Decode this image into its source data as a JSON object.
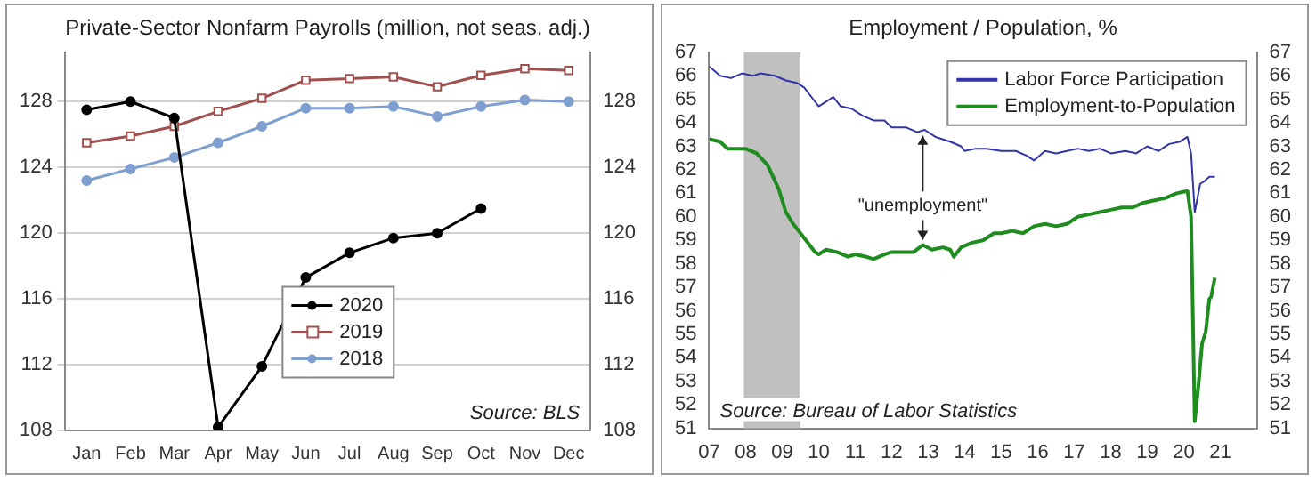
{
  "chart_data": [
    {
      "type": "line",
      "title": "Private-Sector Nonfarm Payrolls (million, not seas. adj.)",
      "categories": [
        "Jan",
        "Feb",
        "Mar",
        "Apr",
        "May",
        "Jun",
        "Jul",
        "Aug",
        "Sep",
        "Oct",
        "Nov",
        "Dec"
      ],
      "series": [
        {
          "name": "2020",
          "color": "#000000",
          "marker": "circle",
          "values": [
            127.5,
            128.0,
            127.0,
            108.2,
            111.9,
            117.3,
            118.8,
            119.7,
            120.0,
            121.5,
            null,
            null
          ]
        },
        {
          "name": "2019",
          "color": "#a0504e",
          "marker": "square",
          "values": [
            125.5,
            125.9,
            126.5,
            127.4,
            128.2,
            129.3,
            129.4,
            129.5,
            128.9,
            129.6,
            130.0,
            129.9
          ]
        },
        {
          "name": "2018",
          "color": "#7f9fd0",
          "marker": "circle",
          "values": [
            123.2,
            123.9,
            124.6,
            125.5,
            126.5,
            127.6,
            127.6,
            127.7,
            127.1,
            127.7,
            128.1,
            128.0
          ]
        }
      ],
      "ylim": [
        108,
        131
      ],
      "yticks": [
        108,
        112,
        116,
        120,
        124,
        128
      ],
      "y2lim": [
        108,
        131
      ],
      "y2ticks": [
        108,
        112,
        116,
        120,
        124,
        128
      ],
      "grid": "y",
      "legend": "bottom",
      "annotations": [
        "Source: BLS"
      ]
    },
    {
      "type": "line",
      "title": "Employment / Population, %",
      "series": [
        {
          "name": "Labor Force Participation",
          "color": "#3333aa",
          "x": [
            2007.0,
            2007.3,
            2007.6,
            2007.9,
            2008.2,
            2008.4,
            2008.8,
            2009.1,
            2009.4,
            2009.6,
            2009.8,
            2010.0,
            2010.2,
            2010.4,
            2010.6,
            2010.9,
            2011.2,
            2011.5,
            2011.8,
            2012.0,
            2012.4,
            2012.7,
            2012.9,
            2013.2,
            2013.6,
            2013.9,
            2014.0,
            2014.3,
            2014.6,
            2015.0,
            2015.4,
            2015.7,
            2015.9,
            2016.2,
            2016.5,
            2016.8,
            2017.1,
            2017.4,
            2017.7,
            2018.0,
            2018.4,
            2018.7,
            2019.0,
            2019.3,
            2019.6,
            2019.9,
            2020.1,
            2020.2,
            2020.3,
            2020.45,
            2020.55,
            2020.7,
            2020.85
          ],
          "values": [
            66.4,
            66.0,
            65.9,
            66.1,
            66.0,
            66.1,
            66.0,
            65.8,
            65.7,
            65.5,
            65.1,
            64.7,
            64.9,
            65.1,
            64.7,
            64.6,
            64.3,
            64.1,
            64.1,
            63.8,
            63.8,
            63.6,
            63.7,
            63.4,
            63.2,
            63.0,
            62.8,
            62.9,
            62.9,
            62.8,
            62.8,
            62.6,
            62.4,
            62.8,
            62.7,
            62.8,
            62.9,
            62.8,
            62.9,
            62.7,
            62.8,
            62.7,
            63.0,
            62.8,
            63.1,
            63.2,
            63.4,
            62.7,
            60.2,
            61.4,
            61.5,
            61.7,
            61.7
          ]
        },
        {
          "name": "Employment-to-Population",
          "color": "#1e8c1e",
          "x": [
            2007.0,
            2007.3,
            2007.5,
            2007.8,
            2008.0,
            2008.3,
            2008.6,
            2008.9,
            2009.1,
            2009.3,
            2009.5,
            2009.7,
            2009.9,
            2010.0,
            2010.2,
            2010.5,
            2010.8,
            2011.0,
            2011.3,
            2011.5,
            2011.8,
            2012.0,
            2012.3,
            2012.6,
            2012.85,
            2013.1,
            2013.4,
            2013.6,
            2013.7,
            2013.9,
            2014.2,
            2014.5,
            2014.8,
            2015.0,
            2015.3,
            2015.6,
            2015.9,
            2016.2,
            2016.5,
            2016.8,
            2017.1,
            2017.4,
            2017.7,
            2018.0,
            2018.3,
            2018.6,
            2018.9,
            2019.2,
            2019.5,
            2019.8,
            2020.1,
            2020.2,
            2020.3,
            2020.4,
            2020.5,
            2020.6,
            2020.7,
            2020.75,
            2020.85
          ],
          "values": [
            63.3,
            63.2,
            62.9,
            62.9,
            62.9,
            62.7,
            62.2,
            61.2,
            60.2,
            59.7,
            59.3,
            58.9,
            58.5,
            58.4,
            58.6,
            58.5,
            58.3,
            58.4,
            58.3,
            58.2,
            58.4,
            58.5,
            58.5,
            58.5,
            58.8,
            58.6,
            58.7,
            58.6,
            58.3,
            58.7,
            58.9,
            59.0,
            59.3,
            59.3,
            59.4,
            59.3,
            59.6,
            59.7,
            59.6,
            59.7,
            60.0,
            60.1,
            60.2,
            60.3,
            60.4,
            60.4,
            60.6,
            60.7,
            60.8,
            61.0,
            61.1,
            60.0,
            51.3,
            52.8,
            54.6,
            55.1,
            56.5,
            56.6,
            57.4
          ]
        }
      ],
      "xlim": [
        2007,
        2022
      ],
      "xticks": [
        {
          "value": 2007,
          "label": "07"
        },
        {
          "value": 2008,
          "label": "08"
        },
        {
          "value": 2009,
          "label": "09"
        },
        {
          "value": 2010,
          "label": "10"
        },
        {
          "value": 2011,
          "label": "11"
        },
        {
          "value": 2012,
          "label": "12"
        },
        {
          "value": 2013,
          "label": "13"
        },
        {
          "value": 2014,
          "label": "14"
        },
        {
          "value": 2015,
          "label": "15"
        },
        {
          "value": 2016,
          "label": "16"
        },
        {
          "value": 2017,
          "label": "17"
        },
        {
          "value": 2018,
          "label": "18"
        },
        {
          "value": 2019,
          "label": "19"
        },
        {
          "value": 2020,
          "label": "20"
        },
        {
          "value": 2021,
          "label": "21"
        }
      ],
      "ylim": [
        51,
        67
      ],
      "yticks": [
        51,
        52,
        53,
        54,
        55,
        56,
        57,
        58,
        59,
        60,
        61,
        62,
        63,
        64,
        65,
        66,
        67
      ],
      "y2lim": [
        51,
        67
      ],
      "y2ticks": [
        51,
        52,
        53,
        54,
        55,
        56,
        57,
        58,
        59,
        60,
        61,
        62,
        63,
        64,
        65,
        66,
        67
      ],
      "bands": [
        {
          "axis": "x",
          "from": 2007.95,
          "to": 2009.5,
          "color": "#c0c0c0"
        }
      ],
      "marker": "none",
      "grid": false,
      "legend": "top right",
      "annotations": [
        {
          "text": "\"unemployment\"",
          "x": 2012.85,
          "y": 63.65
        },
        "Source: Bureau of Labor Statistics"
      ]
    }
  ]
}
